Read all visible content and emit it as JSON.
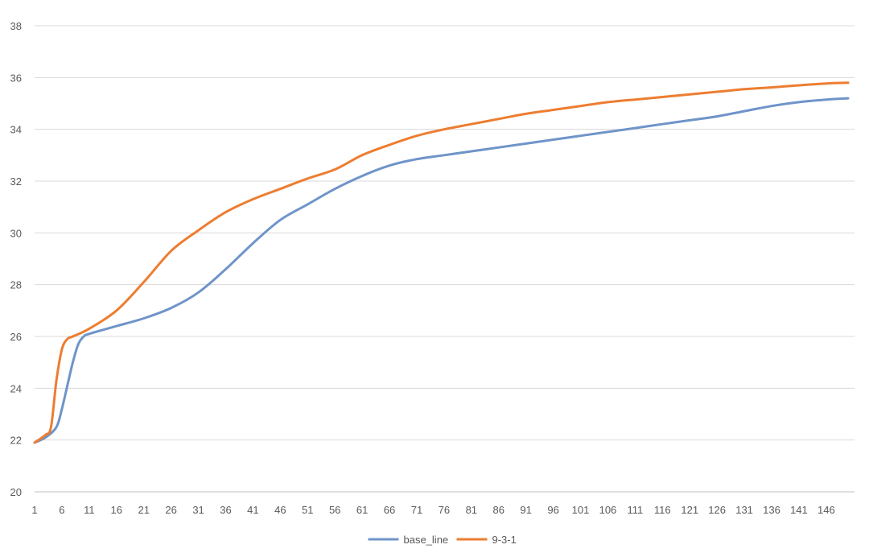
{
  "chart_data": {
    "type": "line",
    "title": "",
    "xlabel": "",
    "ylabel": "",
    "ylim": [
      20,
      38
    ],
    "y_ticks": [
      20,
      22,
      24,
      26,
      28,
      30,
      32,
      34,
      36,
      38
    ],
    "x_range": [
      1,
      150
    ],
    "x_tick_labels": [
      "1",
      "6",
      "11",
      "16",
      "21",
      "26",
      "31",
      "36",
      "41",
      "46",
      "51",
      "56",
      "61",
      "66",
      "71",
      "76",
      "81",
      "86",
      "91",
      "96",
      "101",
      "106",
      "111",
      "116",
      "121",
      "126",
      "131",
      "136",
      "141",
      "146"
    ],
    "grid": "horizontal",
    "legend": "bottom",
    "series": [
      {
        "name": "base_line",
        "color": "#6f94c9",
        "x": [
          1,
          3,
          5,
          6,
          7,
          8,
          9,
          10,
          11,
          16,
          21,
          26,
          31,
          36,
          41,
          46,
          51,
          56,
          61,
          66,
          71,
          76,
          81,
          86,
          91,
          96,
          101,
          106,
          111,
          116,
          121,
          126,
          131,
          136,
          141,
          146,
          150
        ],
        "y": [
          21.9,
          22.1,
          22.5,
          23.2,
          24.1,
          25.0,
          25.7,
          26.0,
          26.1,
          26.4,
          26.7,
          27.1,
          27.7,
          28.6,
          29.6,
          30.5,
          31.1,
          31.7,
          32.2,
          32.6,
          32.85,
          33.0,
          33.15,
          33.3,
          33.45,
          33.6,
          33.75,
          33.9,
          34.05,
          34.2,
          34.35,
          34.5,
          34.7,
          34.9,
          35.05,
          35.15,
          35.2
        ]
      },
      {
        "name": "9-3-1",
        "color": "#ed7d31",
        "x": [
          1,
          3,
          4,
          5,
          6,
          7,
          8,
          11,
          16,
          21,
          26,
          31,
          36,
          41,
          46,
          51,
          56,
          61,
          66,
          71,
          76,
          81,
          86,
          91,
          96,
          101,
          106,
          111,
          116,
          121,
          126,
          131,
          136,
          141,
          146,
          150
        ],
        "y": [
          21.9,
          22.2,
          22.5,
          24.3,
          25.5,
          25.9,
          26.0,
          26.3,
          27.0,
          28.1,
          29.3,
          30.1,
          30.8,
          31.3,
          31.7,
          32.1,
          32.45,
          33.0,
          33.4,
          33.75,
          34.0,
          34.2,
          34.4,
          34.6,
          34.75,
          34.9,
          35.05,
          35.15,
          35.25,
          35.35,
          35.45,
          35.55,
          35.62,
          35.7,
          35.77,
          35.8
        ]
      }
    ]
  }
}
